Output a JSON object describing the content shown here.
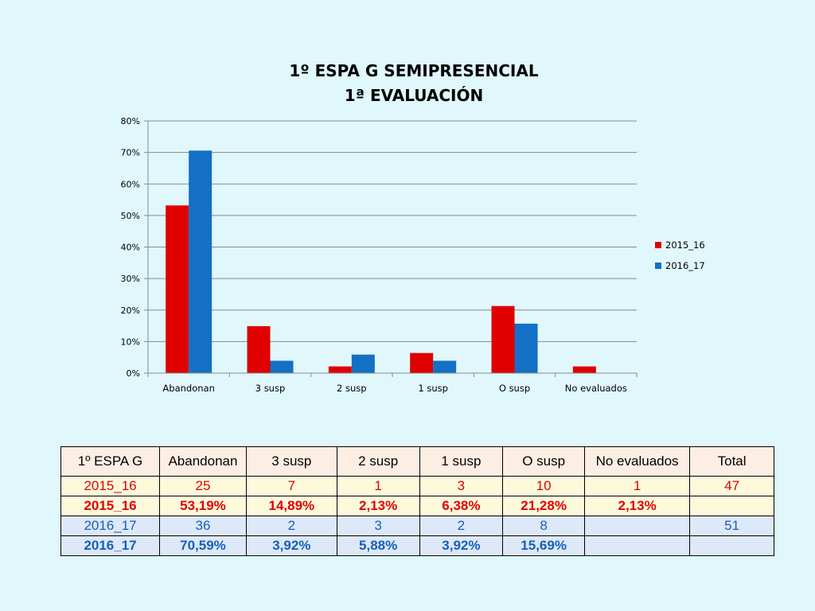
{
  "chart_data": {
    "type": "bar",
    "title": [
      "1º ESPA G SEMIPRESENCIAL",
      "1ª EVALUACIÓN"
    ],
    "categories": [
      "Abandonan",
      "3 susp",
      "2 susp",
      "1 susp",
      "O susp",
      "No evaluados"
    ],
    "series": [
      {
        "name": "2015_16",
        "color": "#e00000",
        "values": [
          53.19,
          14.89,
          2.13,
          6.38,
          21.28,
          2.13
        ]
      },
      {
        "name": "2016_17",
        "color": "#1370c4",
        "values": [
          70.59,
          3.92,
          5.88,
          3.92,
          15.69,
          0
        ]
      }
    ],
    "ylim": [
      0,
      80
    ],
    "yticks": [
      "0%",
      "10%",
      "20%",
      "30%",
      "40%",
      "50%",
      "60%",
      "70%",
      "80%"
    ],
    "grid": true,
    "legend": "right"
  },
  "table": {
    "header": [
      "1º ESPA G",
      "Abandonan",
      "3 susp",
      "2 susp",
      "1 susp",
      "O susp",
      "No evaluados",
      "Total"
    ],
    "rows": [
      [
        "2015_16",
        "25",
        "7",
        "1",
        "3",
        "10",
        "1",
        "47"
      ],
      [
        "2015_16",
        "53,19%",
        "14,89%",
        "2,13%",
        "6,38%",
        "21,28%",
        "2,13%",
        ""
      ],
      [
        "2016_17",
        "36",
        "2",
        "3",
        "2",
        "8",
        "",
        "51"
      ],
      [
        "2016_17",
        "70,59%",
        "3,92%",
        "5,88%",
        "3,92%",
        "15,69%",
        "",
        ""
      ]
    ]
  }
}
